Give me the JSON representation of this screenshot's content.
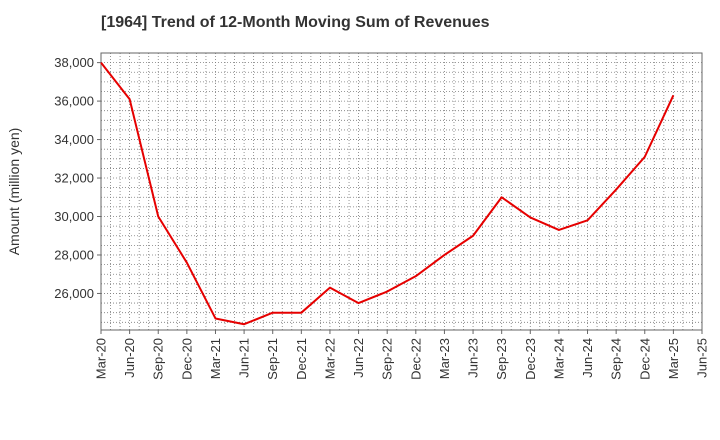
{
  "chart_data": {
    "type": "line",
    "title": "[1964]  Trend of 12-Month Moving Sum of Revenues",
    "ylabel": "Amount (million yen)",
    "xlabel": "",
    "ylim": [
      24100,
      38500
    ],
    "yticks": [
      26000,
      28000,
      30000,
      32000,
      34000,
      36000,
      38000
    ],
    "ytick_labels": [
      "26,000",
      "28,000",
      "30,000",
      "32,000",
      "34,000",
      "36,000",
      "38,000"
    ],
    "categories": [
      "Mar-20",
      "Jun-20",
      "Sep-20",
      "Dec-20",
      "Mar-21",
      "Jun-21",
      "Sep-21",
      "Dec-21",
      "Mar-22",
      "Jun-22",
      "Sep-22",
      "Dec-22",
      "Mar-23",
      "Jun-23",
      "Sep-23",
      "Dec-23",
      "Mar-24",
      "Jun-24",
      "Sep-24",
      "Dec-24",
      "Mar-25",
      "Jun-25"
    ],
    "grid": true,
    "series": [
      {
        "color": "#e60000",
        "values": [
          38000,
          36100,
          30000,
          27600,
          24700,
          24400,
          25000,
          25000,
          26300,
          25500,
          26100,
          26900,
          28000,
          29000,
          31000,
          29950,
          29300,
          29800,
          31400,
          33100,
          36300,
          null
        ]
      }
    ]
  }
}
